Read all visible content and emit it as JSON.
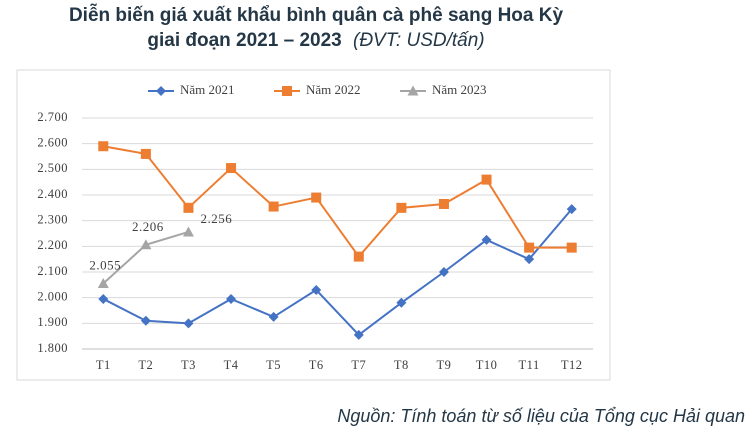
{
  "chart_data": {
    "type": "line",
    "title": [
      "Diễn biến giá xuất khẩu bình quân cà phê sang Hoa Kỳ",
      "giai đoạn 2021 – 2023"
    ],
    "subtitle": "(ĐVT: USD/tấn)",
    "source": "Nguồn: Tính toán từ số liệu của Tổng cục Hải quan",
    "categories": [
      "T1",
      "T2",
      "T3",
      "T4",
      "T5",
      "T6",
      "T7",
      "T8",
      "T9",
      "T10",
      "T11",
      "T12"
    ],
    "series": [
      {
        "name": "Năm 2021",
        "color": "#4472c4",
        "marker": "diamond",
        "values": [
          1995,
          1910,
          1900,
          1995,
          1925,
          2030,
          1855,
          1980,
          2100,
          2225,
          2150,
          2345
        ]
      },
      {
        "name": "Năm 2022",
        "color": "#ed7d31",
        "marker": "square",
        "values": [
          2590,
          2560,
          2350,
          2505,
          2355,
          2390,
          2160,
          2350,
          2365,
          2460,
          2195,
          2195
        ]
      },
      {
        "name": "Năm 2023",
        "color": "#a5a5a5",
        "marker": "triangle",
        "values": [
          2055,
          2206,
          2256,
          null,
          null,
          null,
          null,
          null,
          null,
          null,
          null,
          null
        ],
        "value_labels": [
          "2.055",
          "2.206",
          "2.256",
          null,
          null,
          null,
          null,
          null,
          null,
          null,
          null,
          null
        ]
      }
    ],
    "ylim": [
      1800,
      2700
    ],
    "yticks": [
      {
        "value": 1800,
        "label": "1.800"
      },
      {
        "value": 1900,
        "label": "1.900"
      },
      {
        "value": 2000,
        "label": "2.000"
      },
      {
        "value": 2100,
        "label": "2.100"
      },
      {
        "value": 2200,
        "label": "2.200"
      },
      {
        "value": 2300,
        "label": "2.300"
      },
      {
        "value": 2400,
        "label": "2.400"
      },
      {
        "value": 2500,
        "label": "2.500"
      },
      {
        "value": 2600,
        "label": "2.600"
      },
      {
        "value": 2700,
        "label": "2.700"
      }
    ],
    "grid": true,
    "legend": "top"
  }
}
